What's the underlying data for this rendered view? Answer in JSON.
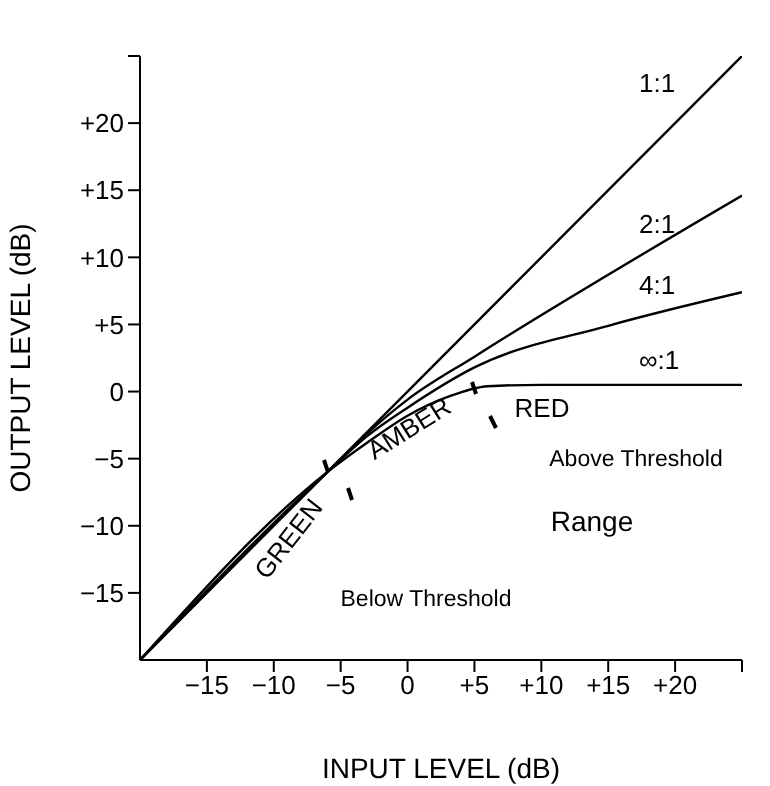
{
  "chart_data": {
    "type": "line",
    "xlabel": "INPUT LEVEL (dB)",
    "ylabel": "OUTPUT LEVEL (dB)",
    "xlim": [
      -20,
      25
    ],
    "ylim": [
      -20,
      25
    ],
    "xticks": [
      {
        "value": -15,
        "label": "−15"
      },
      {
        "value": -10,
        "label": "−10"
      },
      {
        "value": -5,
        "label": "−5"
      },
      0,
      {
        "value": 5,
        "label": "+5"
      },
      {
        "value": 10,
        "label": "+10"
      },
      {
        "value": 15,
        "label": "+15"
      },
      {
        "value": 20,
        "label": "+20"
      },
      {
        "value": 25,
        "label": null
      }
    ],
    "yticks": [
      {
        "value": -15,
        "label": "−15"
      },
      {
        "value": -10,
        "label": "−10"
      },
      {
        "value": -5,
        "label": "−5"
      },
      0,
      {
        "value": 5,
        "label": "+5"
      },
      {
        "value": 10,
        "label": "+10"
      },
      {
        "value": 15,
        "label": "+15"
      },
      {
        "value": 20,
        "label": "+20"
      },
      {
        "value": 25,
        "label": null
      }
    ],
    "series": [
      {
        "name": "1:1",
        "color": "#000000",
        "x": [
          -20,
          25
        ],
        "values": [
          -20,
          25
        ]
      },
      {
        "name": "2:1",
        "color": "#000000",
        "x": [
          -20,
          -6,
          -3,
          0,
          5,
          25
        ],
        "values": [
          -20,
          -6,
          -3.1,
          -0.6,
          2.6,
          14.6
        ]
      },
      {
        "name": "4:1",
        "color": "#000000",
        "x": [
          -20,
          -6,
          -3,
          0,
          5,
          15,
          25
        ],
        "values": [
          -20,
          -6,
          -3.3,
          -1.2,
          1.8,
          4.9,
          7.4
        ]
      },
      {
        "name": "∞:1",
        "color": "#000000",
        "x": [
          -20,
          -6,
          -3,
          0,
          3,
          6,
          10,
          25
        ],
        "values": [
          -20,
          -6,
          -3.8,
          -1.8,
          -0.4,
          0.4,
          0.5,
          0.5
        ]
      }
    ],
    "annotations": [
      "GREEN",
      "AMBER",
      "RED",
      "Above Threshold",
      "Range",
      "Below Threshold"
    ],
    "marker": "none",
    "line_style": "solid",
    "grid": false,
    "legend": false
  }
}
